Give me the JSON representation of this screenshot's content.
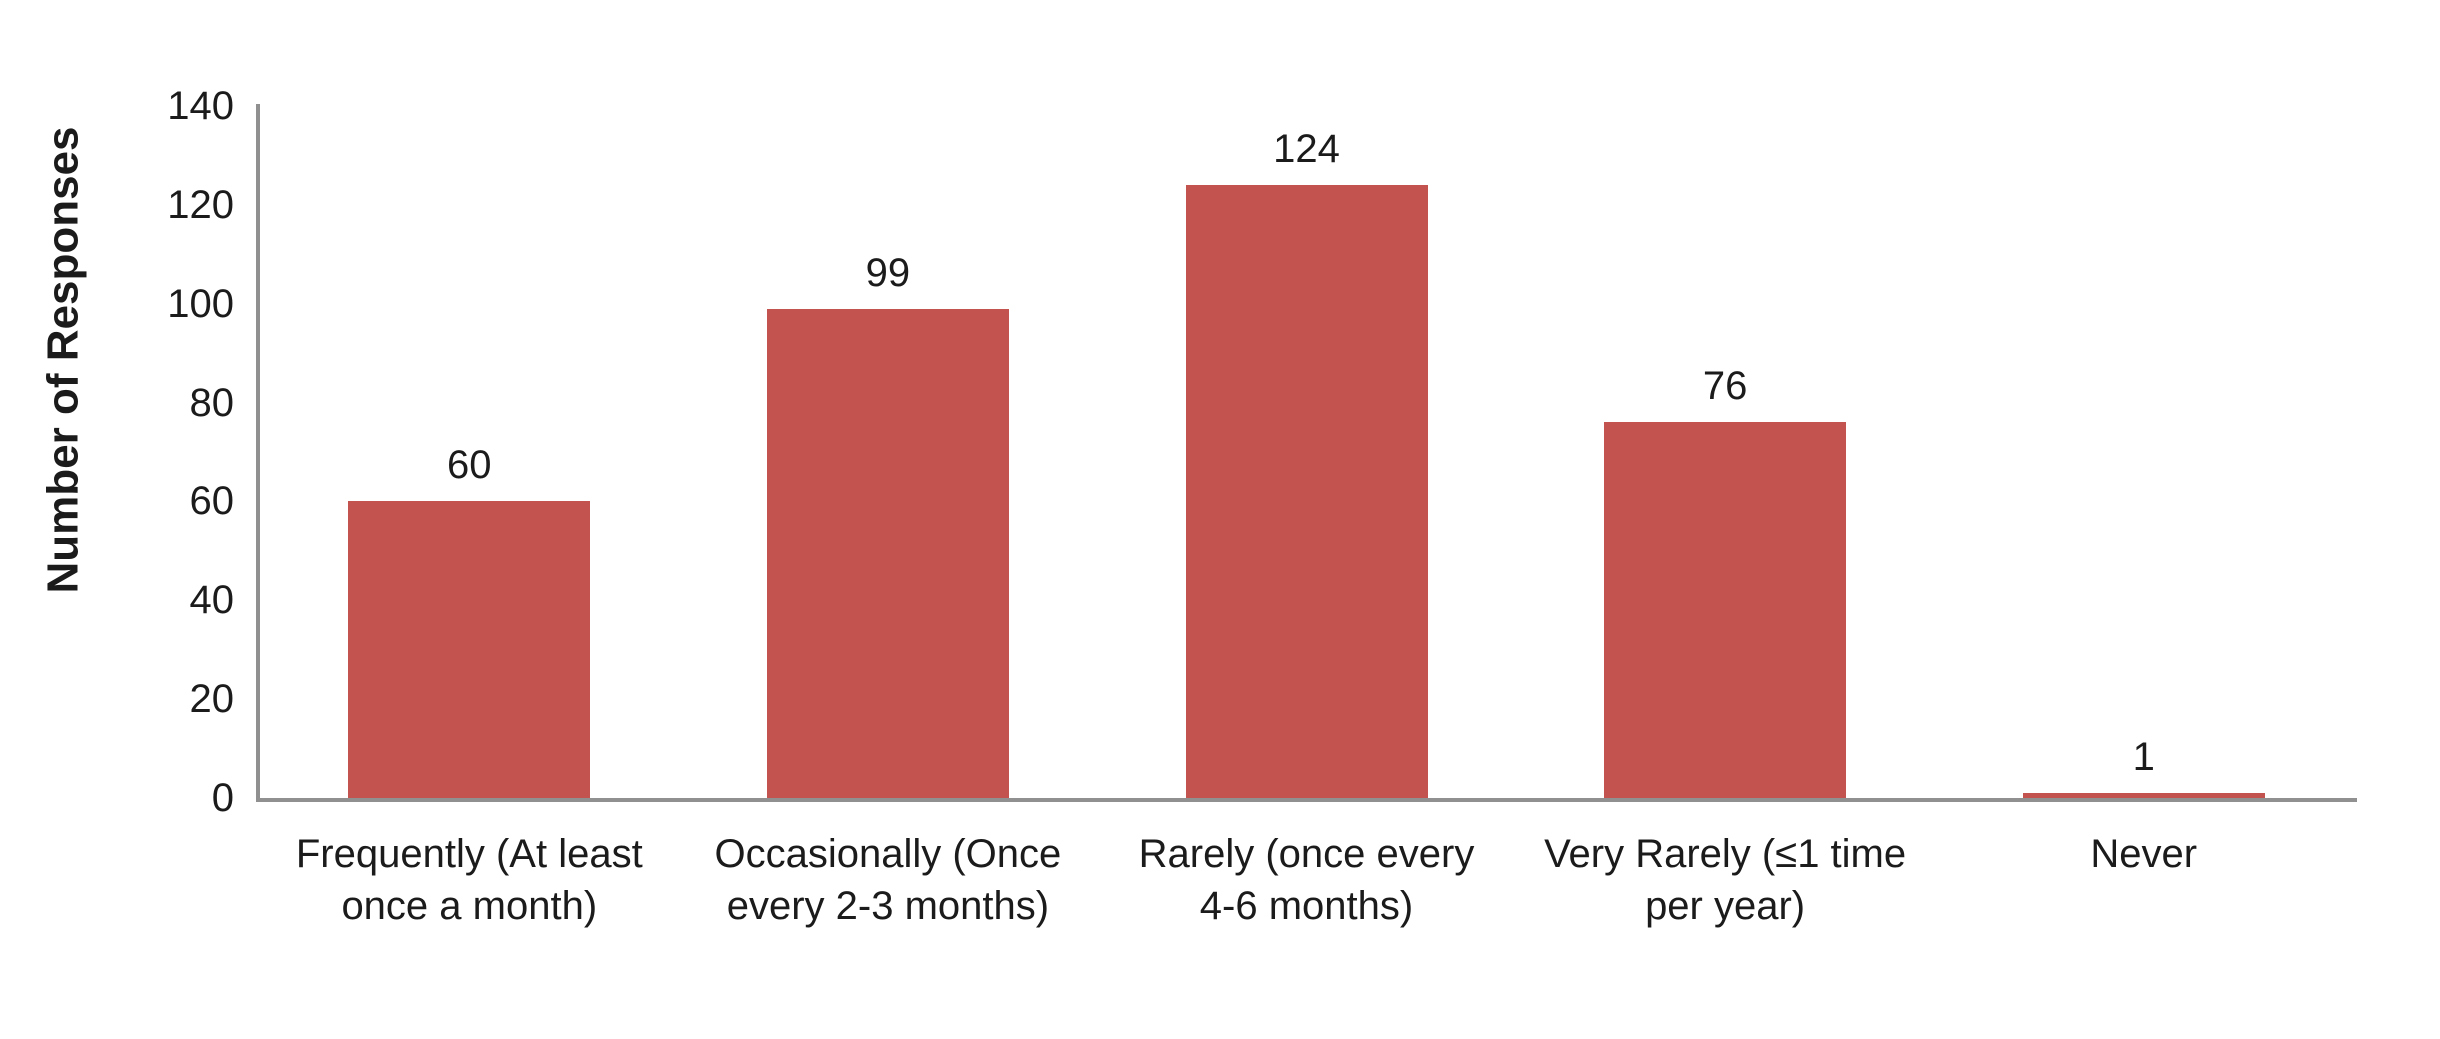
{
  "chart_data": {
    "type": "bar",
    "title": "",
    "ylabel": "Number of Responses",
    "xlabel": "",
    "categories": [
      "Frequently (At least\nonce a month)",
      "Occasionally (Once\nevery 2-3 months)",
      "Rarely (once every\n4-6 months)",
      "Very Rarely (≤1 time\nper year)",
      "Never"
    ],
    "values": [
      60,
      99,
      124,
      76,
      1
    ],
    "yticks": [
      0,
      20,
      40,
      60,
      80,
      100,
      120,
      140
    ],
    "ylim": [
      0,
      140
    ],
    "grid": false,
    "legend": "none",
    "colors": {
      "bar": "#C2534F",
      "axis": "#909090",
      "text": "#1B1B1B"
    }
  }
}
